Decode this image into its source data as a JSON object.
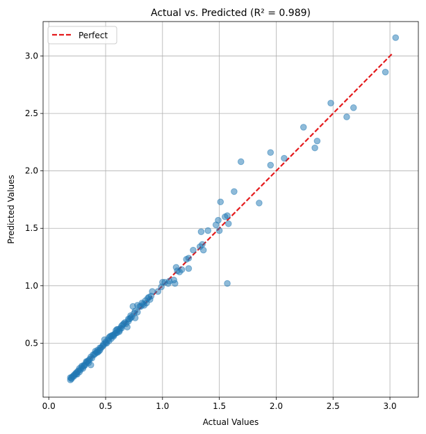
{
  "chart_data": {
    "type": "scatter",
    "title": "Actual vs. Predicted (R² = 0.989)",
    "xlabel": "Actual Values",
    "ylabel": "Predicted Values",
    "xlim": [
      -0.05,
      3.25
    ],
    "ylim": [
      0.03,
      3.3
    ],
    "xticks": [
      "0.0",
      "0.5",
      "1.0",
      "1.5",
      "2.0",
      "2.5",
      "3.0"
    ],
    "yticks": [
      "0.5",
      "1.0",
      "1.5",
      "2.0",
      "2.5",
      "3.0"
    ],
    "grid": true,
    "legend_position": "top-left",
    "legend": [
      {
        "label": "Perfect",
        "style": "dashed",
        "color": "#e41a1c"
      }
    ],
    "perfect_line": {
      "x": [
        0.19,
        3.02
      ],
      "y": [
        0.19,
        3.02
      ],
      "color": "#e41a1c"
    },
    "point_color": "#1f77b4",
    "points": [
      [
        3.05,
        3.16
      ],
      [
        2.96,
        2.86
      ],
      [
        2.68,
        2.55
      ],
      [
        2.62,
        2.47
      ],
      [
        2.48,
        2.59
      ],
      [
        2.36,
        2.26
      ],
      [
        2.34,
        2.2
      ],
      [
        2.24,
        2.38
      ],
      [
        2.07,
        2.11
      ],
      [
        1.95,
        2.16
      ],
      [
        1.95,
        2.05
      ],
      [
        1.85,
        1.72
      ],
      [
        1.69,
        2.08
      ],
      [
        1.63,
        1.82
      ],
      [
        1.57,
        1.61
      ],
      [
        1.58,
        1.54
      ],
      [
        1.55,
        1.6
      ],
      [
        1.51,
        1.73
      ],
      [
        1.5,
        1.48
      ],
      [
        1.49,
        1.57
      ],
      [
        1.47,
        1.53
      ],
      [
        1.57,
        1.02
      ],
      [
        1.4,
        1.48
      ],
      [
        1.36,
        1.31
      ],
      [
        1.35,
        1.36
      ],
      [
        1.34,
        1.47
      ],
      [
        1.33,
        1.34
      ],
      [
        1.27,
        1.31
      ],
      [
        1.23,
        1.24
      ],
      [
        1.21,
        1.23
      ],
      [
        1.23,
        1.15
      ],
      [
        1.17,
        1.14
      ],
      [
        1.15,
        1.12
      ],
      [
        1.13,
        1.13
      ],
      [
        1.12,
        1.16
      ],
      [
        1.11,
        1.02
      ],
      [
        1.1,
        1.05
      ],
      [
        1.06,
        1.04
      ],
      [
        1.05,
        1.02
      ],
      [
        1.02,
        1.03
      ],
      [
        1.0,
        1.03
      ],
      [
        0.99,
        0.99
      ],
      [
        0.96,
        0.95
      ],
      [
        0.91,
        0.95
      ],
      [
        0.9,
        0.91
      ],
      [
        0.89,
        0.88
      ],
      [
        0.87,
        0.89
      ],
      [
        0.85,
        0.87
      ],
      [
        0.83,
        0.84
      ],
      [
        0.82,
        0.85
      ],
      [
        0.8,
        0.82
      ],
      [
        0.78,
        0.83
      ],
      [
        0.76,
        0.72
      ],
      [
        0.76,
        0.78
      ],
      [
        0.74,
        0.82
      ],
      [
        0.73,
        0.73
      ],
      [
        0.72,
        0.72
      ],
      [
        0.71,
        0.71
      ],
      [
        0.7,
        0.69
      ],
      [
        0.69,
        0.64
      ],
      [
        0.68,
        0.67
      ],
      [
        0.66,
        0.67
      ],
      [
        0.65,
        0.66
      ],
      [
        0.64,
        0.65
      ],
      [
        0.63,
        0.63
      ],
      [
        0.62,
        0.6
      ],
      [
        0.61,
        0.62
      ],
      [
        0.6,
        0.59
      ],
      [
        0.59,
        0.61
      ],
      [
        0.58,
        0.58
      ],
      [
        0.57,
        0.57
      ],
      [
        0.56,
        0.57
      ],
      [
        0.55,
        0.54
      ],
      [
        0.54,
        0.56
      ],
      [
        0.53,
        0.52
      ],
      [
        0.52,
        0.53
      ],
      [
        0.51,
        0.5
      ],
      [
        0.5,
        0.5
      ],
      [
        0.49,
        0.53
      ],
      [
        0.48,
        0.48
      ],
      [
        0.47,
        0.47
      ],
      [
        0.46,
        0.46
      ],
      [
        0.45,
        0.46
      ],
      [
        0.44,
        0.43
      ],
      [
        0.43,
        0.44
      ],
      [
        0.42,
        0.42
      ],
      [
        0.41,
        0.41
      ],
      [
        0.4,
        0.4
      ],
      [
        0.39,
        0.4
      ],
      [
        0.38,
        0.37
      ],
      [
        0.37,
        0.31
      ],
      [
        0.36,
        0.36
      ],
      [
        0.35,
        0.35
      ],
      [
        0.34,
        0.34
      ],
      [
        0.33,
        0.33
      ],
      [
        0.32,
        0.31
      ],
      [
        0.31,
        0.31
      ],
      [
        0.3,
        0.28
      ],
      [
        0.29,
        0.29
      ],
      [
        0.28,
        0.27
      ],
      [
        0.27,
        0.28
      ],
      [
        0.26,
        0.26
      ],
      [
        0.25,
        0.25
      ],
      [
        0.25,
        0.23
      ],
      [
        0.24,
        0.24
      ],
      [
        0.23,
        0.23
      ],
      [
        0.22,
        0.22
      ],
      [
        0.21,
        0.21
      ],
      [
        0.2,
        0.2
      ],
      [
        0.19,
        0.18
      ],
      [
        0.19,
        0.2
      ],
      [
        0.2,
        0.19
      ],
      [
        0.22,
        0.21
      ],
      [
        0.24,
        0.23
      ],
      [
        0.27,
        0.25
      ],
      [
        0.29,
        0.3
      ],
      [
        0.31,
        0.3
      ],
      [
        0.33,
        0.34
      ],
      [
        0.35,
        0.33
      ],
      [
        0.37,
        0.38
      ],
      [
        0.41,
        0.43
      ],
      [
        0.43,
        0.42
      ],
      [
        0.45,
        0.44
      ],
      [
        0.48,
        0.49
      ],
      [
        0.5,
        0.51
      ],
      [
        0.53,
        0.55
      ],
      [
        0.55,
        0.56
      ],
      [
        0.57,
        0.56
      ],
      [
        0.59,
        0.59
      ],
      [
        0.6,
        0.62
      ],
      [
        0.62,
        0.61
      ],
      [
        0.64,
        0.63
      ],
      [
        0.67,
        0.68
      ],
      [
        0.7,
        0.71
      ],
      [
        0.72,
        0.74
      ],
      [
        0.75,
        0.76
      ],
      [
        0.78,
        0.77
      ],
      [
        0.81,
        0.82
      ],
      [
        0.84,
        0.83
      ],
      [
        0.86,
        0.85
      ],
      [
        0.88,
        0.9
      ]
    ]
  }
}
